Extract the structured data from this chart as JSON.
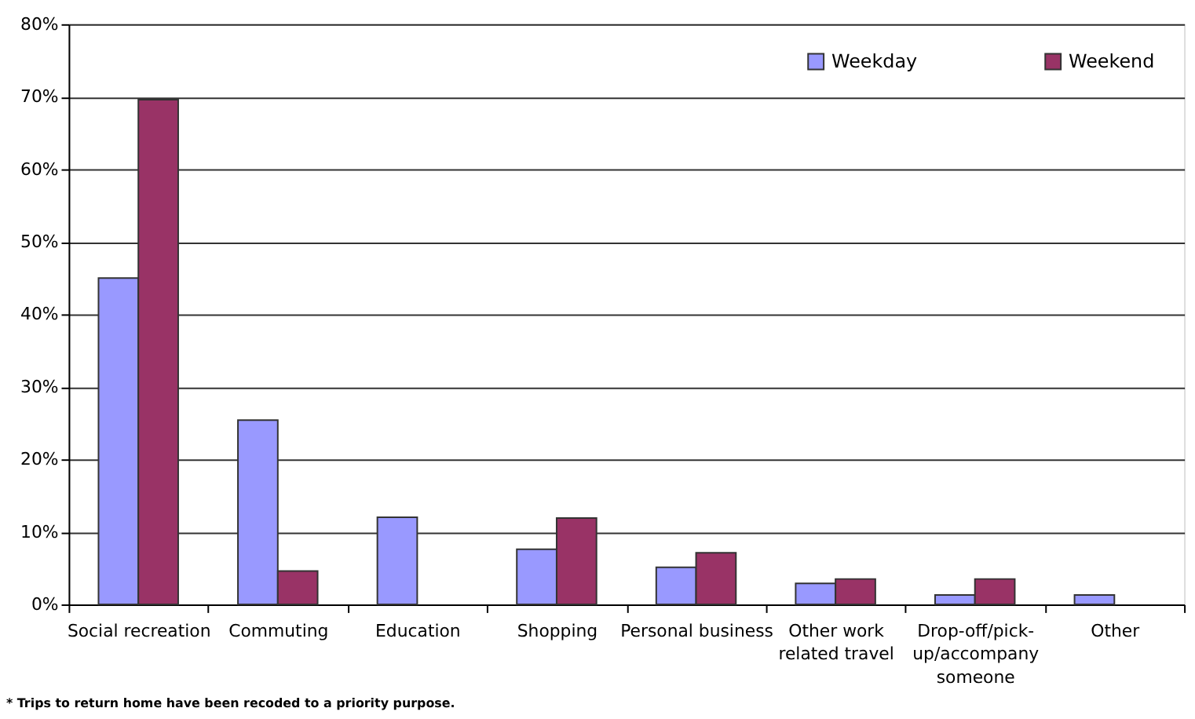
{
  "chart_data": {
    "type": "bar",
    "categories": [
      "Social recreation",
      "Commuting",
      "Education",
      "Shopping",
      "Personal business",
      "Other work\nrelated travel",
      "Drop-off/pick-\nup/accompany\nsomeone",
      "Other"
    ],
    "series": [
      {
        "name": "Weekday",
        "color": "#9999ff",
        "values": [
          45,
          25.4,
          12,
          7.6,
          5.1,
          2.9,
          1.3,
          1.3
        ]
      },
      {
        "name": "Weekend",
        "color": "#993366",
        "values": [
          69.6,
          4.6,
          null,
          11.9,
          7.1,
          3.5,
          3.5,
          null
        ]
      }
    ],
    "ylim": [
      0,
      80
    ],
    "yticks": [
      {
        "value": 0,
        "label": "0%"
      },
      {
        "value": 10,
        "label": "10%"
      },
      {
        "value": 20,
        "label": "20%"
      },
      {
        "value": 30,
        "label": "30%"
      },
      {
        "value": 40,
        "label": "40%"
      },
      {
        "value": 50,
        "label": "50%"
      },
      {
        "value": 60,
        "label": "60%"
      },
      {
        "value": 70,
        "label": "70%"
      },
      {
        "value": 80,
        "label": "80%"
      }
    ],
    "grid": "y",
    "legend": "top right",
    "annotations": [
      "* Trips to return home have been recoded to a priority purpose."
    ]
  }
}
